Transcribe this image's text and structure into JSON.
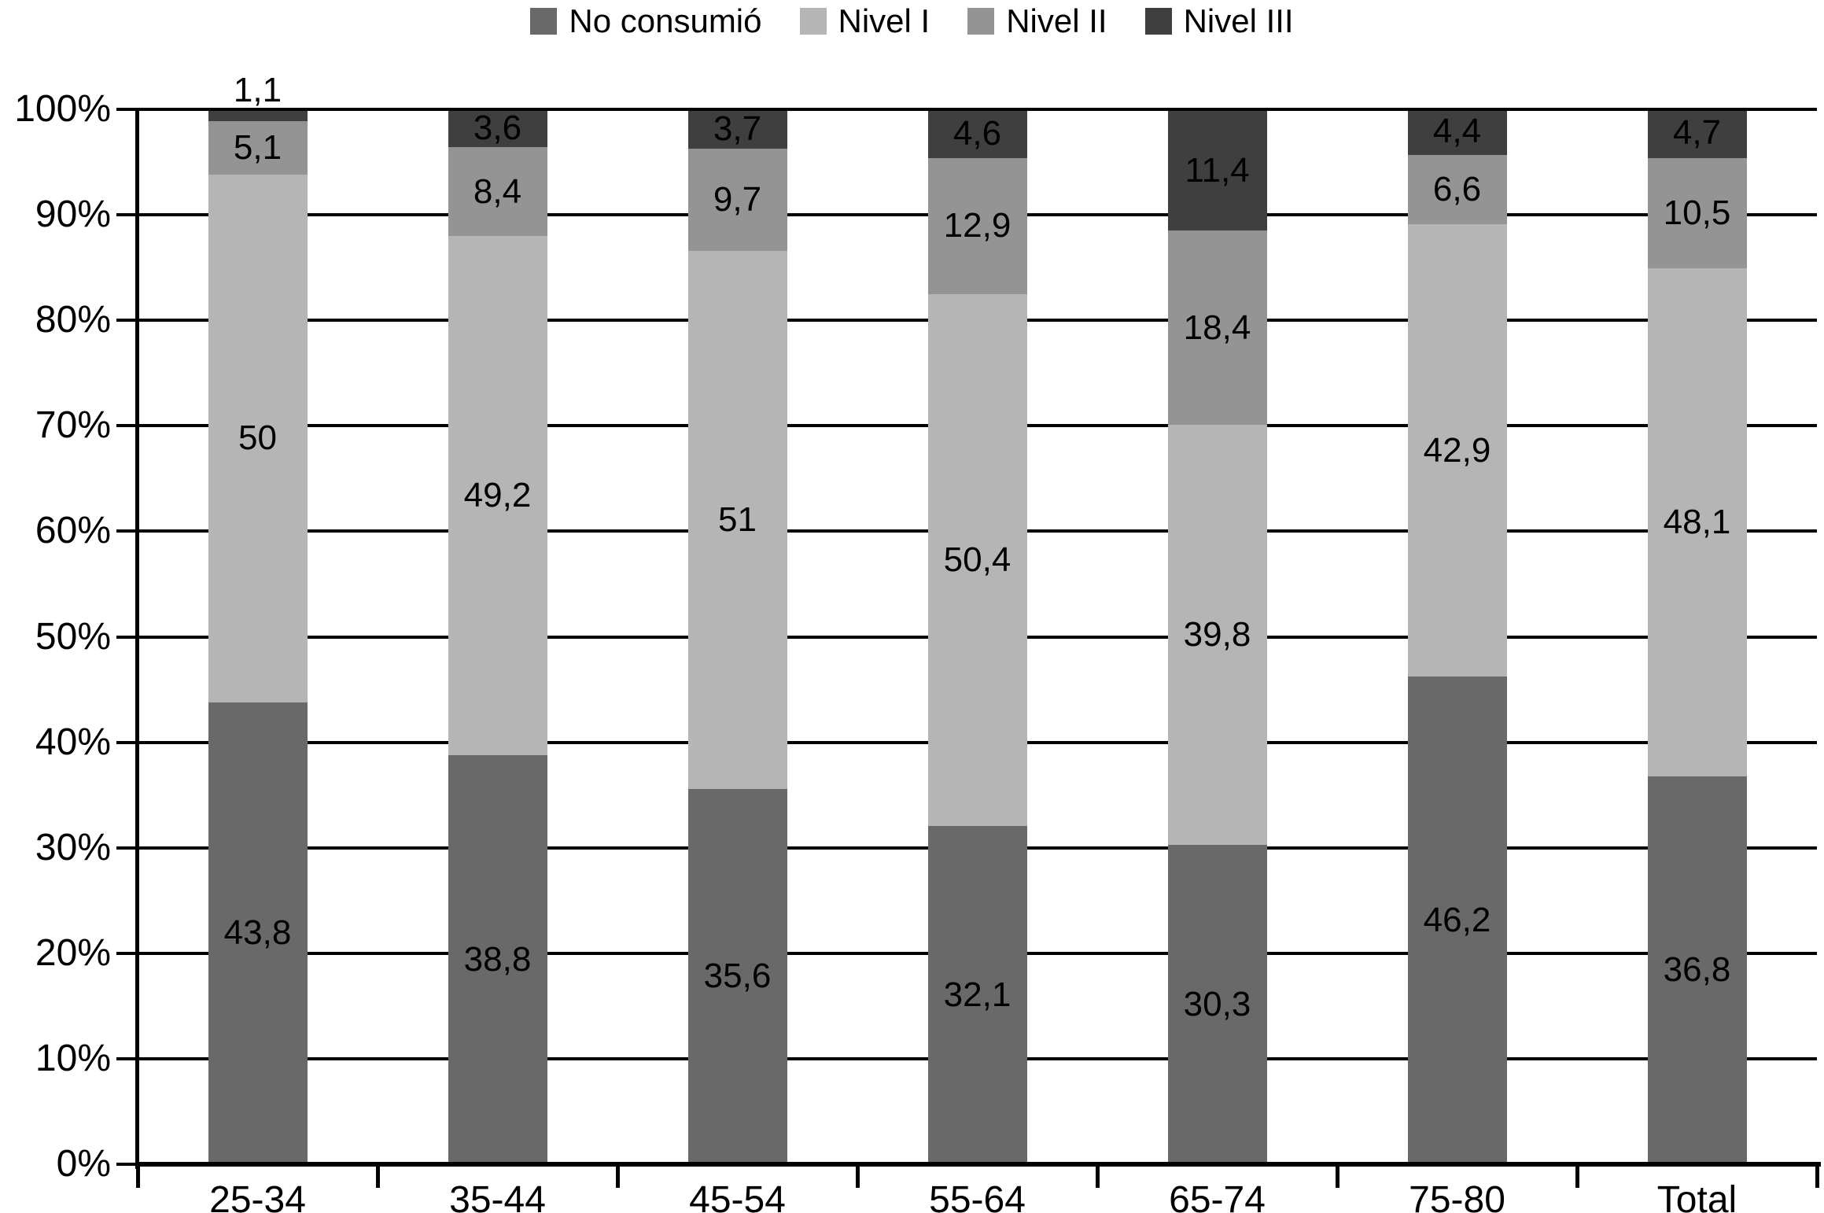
{
  "chart_data": {
    "type": "bar",
    "subtype": "stacked-100-percent",
    "categories": [
      "25-34",
      "35-44",
      "45-54",
      "55-64",
      "65-74",
      "75-80",
      "Total"
    ],
    "series": [
      {
        "name": "No consumió",
        "color": "#696969",
        "values": [
          43.8,
          38.8,
          35.6,
          32.1,
          30.3,
          46.2,
          36.8
        ],
        "labels": [
          "43,8",
          "38,8",
          "35,6",
          "32,1",
          "30,3",
          "46,2",
          "36,8"
        ]
      },
      {
        "name": "Nivel I",
        "color": "#b5b5b5",
        "values": [
          50,
          49.2,
          51,
          50.4,
          39.8,
          42.9,
          48.1
        ],
        "labels": [
          "50",
          "49,2",
          "51",
          "50,4",
          "39,8",
          "42,9",
          "48,1"
        ]
      },
      {
        "name": "Nivel II",
        "color": "#949494",
        "values": [
          5.1,
          8.4,
          9.7,
          12.9,
          18.4,
          6.6,
          10.5
        ],
        "labels": [
          "5,1",
          "8,4",
          "9,7",
          "12,9",
          "18,4",
          "6,6",
          "10,5"
        ]
      },
      {
        "name": "Nivel III",
        "color": "#3f3f3f",
        "values": [
          1.1,
          3.6,
          3.7,
          4.6,
          11.4,
          4.4,
          4.7
        ],
        "labels": [
          "1,1",
          "3,6",
          "3,7",
          "4,6",
          "11,4",
          "4,4",
          "4,7"
        ]
      }
    ],
    "y_axis": {
      "min": 0,
      "max": 100,
      "step": 10,
      "ticks": [
        "0%",
        "10%",
        "20%",
        "30%",
        "40%",
        "50%",
        "60%",
        "70%",
        "80%",
        "90%",
        "100%"
      ]
    },
    "legend_position": "top",
    "grid": true,
    "gridline_color": "#000000",
    "background_color": "#ffffff",
    "label_color": "#000000"
  }
}
